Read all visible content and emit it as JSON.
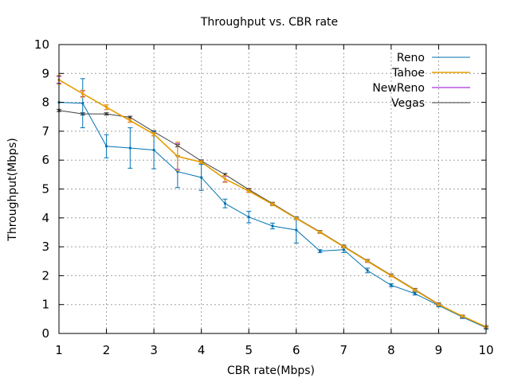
{
  "chart_data": {
    "type": "line",
    "title": "Throughput vs. CBR rate",
    "xlabel": "CBR rate(Mbps)",
    "ylabel": "Throughput(Mbps)",
    "xlim": [
      1,
      10
    ],
    "ylim": [
      0,
      10
    ],
    "xticks": [
      1,
      2,
      3,
      4,
      5,
      6,
      7,
      8,
      9,
      10
    ],
    "yticks": [
      0,
      1,
      2,
      3,
      4,
      5,
      6,
      7,
      8,
      9,
      10
    ],
    "grid": true,
    "legend_position": "top-right",
    "x": [
      1,
      1.5,
      2,
      2.5,
      3,
      3.5,
      4,
      4.5,
      5,
      5.5,
      6,
      6.5,
      7,
      7.5,
      8,
      8.5,
      9,
      9.5,
      10
    ],
    "series": [
      {
        "name": "Reno",
        "color": "#0072b2",
        "values": [
          8.0,
          7.97,
          6.48,
          6.42,
          6.35,
          5.6,
          5.4,
          4.5,
          4.03,
          3.72,
          3.58,
          2.85,
          2.9,
          2.18,
          1.67,
          1.38,
          0.97,
          0.57,
          0.2
        ],
        "err": [
          0,
          0.85,
          0.4,
          0.7,
          0.65,
          0.55,
          0.45,
          0.15,
          0.2,
          0.1,
          0.45,
          0.05,
          0.1,
          0.08,
          0.05,
          0.05,
          0.05,
          0.05,
          0.05
        ]
      },
      {
        "name": "Tahoe",
        "color": "#e69f00",
        "values": [
          8.78,
          8.3,
          7.83,
          7.37,
          6.9,
          6.13,
          5.93,
          5.35,
          4.93,
          4.47,
          3.98,
          3.5,
          3.0,
          2.5,
          2.0,
          1.5,
          1.0,
          0.6,
          0.23
        ],
        "err": [
          0.15,
          0.12,
          0.08,
          0.06,
          0.06,
          0.5,
          0.05,
          0.12,
          0.05,
          0.05,
          0.04,
          0.04,
          0.04,
          0.04,
          0.04,
          0.04,
          0.04,
          0.04,
          0.04
        ]
      },
      {
        "name": "NewReno",
        "color": "#9400d3",
        "values": [
          8.78,
          8.3,
          7.83,
          7.37,
          6.9,
          6.13,
          5.93,
          5.35,
          4.93,
          4.47,
          3.98,
          3.5,
          3.0,
          2.5,
          2.0,
          1.5,
          1.0,
          0.6,
          0.23
        ],
        "err": [
          0.12,
          0.1,
          0.08,
          0.06,
          0.06,
          0.45,
          0.05,
          0.1,
          0.05,
          0.05,
          0.04,
          0.04,
          0.04,
          0.04,
          0.04,
          0.04,
          0.04,
          0.04,
          0.04
        ]
      },
      {
        "name": "Vegas",
        "color": "#404040",
        "values": [
          7.72,
          7.6,
          7.6,
          7.48,
          6.98,
          6.5,
          5.97,
          5.5,
          4.98,
          4.5,
          4.0,
          3.52,
          3.02,
          2.52,
          2.02,
          1.52,
          1.02,
          0.57,
          0.2
        ],
        "err": [
          0.04,
          0.04,
          0.04,
          0.04,
          0.04,
          0.04,
          0.04,
          0.04,
          0.04,
          0.04,
          0.04,
          0.04,
          0.04,
          0.04,
          0.04,
          0.04,
          0.04,
          0.04,
          0.04
        ]
      }
    ]
  }
}
